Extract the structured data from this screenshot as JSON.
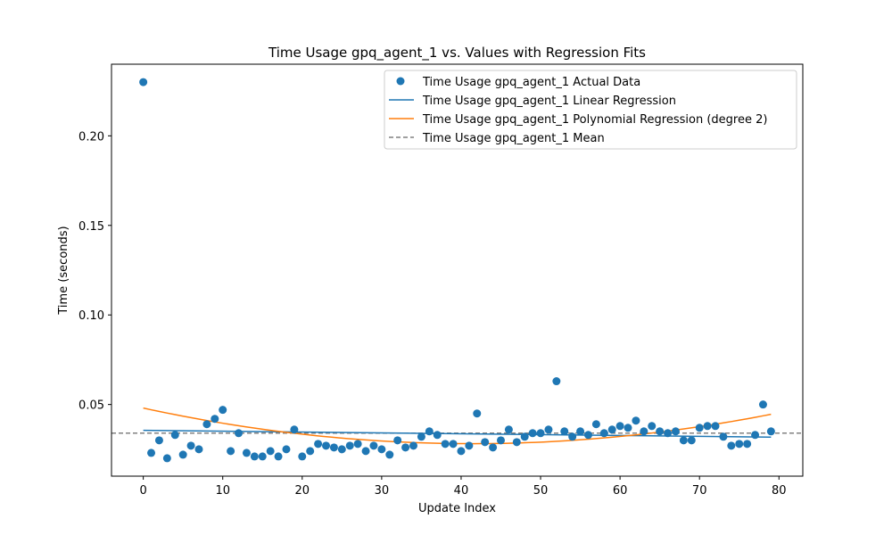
{
  "chart_data": {
    "type": "scatter",
    "title": "Time Usage gpq_agent_1 vs. Values with Regression Fits",
    "xlabel": "Update Index",
    "ylabel": "Time (seconds)",
    "xlim": [
      -4,
      83
    ],
    "ylim": [
      0.01,
      0.24
    ],
    "xticks": [
      0,
      10,
      20,
      30,
      40,
      50,
      60,
      70,
      80
    ],
    "xtick_labels": [
      "0",
      "10",
      "20",
      "30",
      "40",
      "50",
      "60",
      "70",
      "80"
    ],
    "yticks": [
      0.05,
      0.1,
      0.15,
      0.2
    ],
    "ytick_labels": [
      "0.05",
      "0.10",
      "0.15",
      "0.20"
    ],
    "grid": false,
    "legend_position": "top-right",
    "colors": {
      "actual": "#1f77b4",
      "linear": "#1f77b4",
      "poly": "#ff7f0e",
      "mean": "#808080"
    },
    "series": [
      {
        "name": "Time Usage gpq_agent_1 Actual Data",
        "kind": "scatter",
        "x": [
          0,
          1,
          2,
          3,
          4,
          5,
          6,
          7,
          8,
          9,
          10,
          11,
          12,
          13,
          14,
          15,
          16,
          17,
          18,
          19,
          20,
          21,
          22,
          23,
          24,
          25,
          26,
          27,
          28,
          29,
          30,
          31,
          32,
          33,
          34,
          35,
          36,
          37,
          38,
          39,
          40,
          41,
          42,
          43,
          44,
          45,
          46,
          47,
          48,
          49,
          50,
          51,
          52,
          53,
          54,
          55,
          56,
          57,
          58,
          59,
          60,
          61,
          62,
          63,
          64,
          65,
          66,
          67,
          68,
          69,
          70,
          71,
          72,
          73,
          74,
          75,
          76,
          77,
          78,
          79
        ],
        "y": [
          0.23,
          0.023,
          0.03,
          0.02,
          0.033,
          0.022,
          0.027,
          0.025,
          0.039,
          0.042,
          0.047,
          0.024,
          0.034,
          0.023,
          0.021,
          0.021,
          0.024,
          0.021,
          0.025,
          0.036,
          0.021,
          0.024,
          0.028,
          0.027,
          0.026,
          0.025,
          0.027,
          0.028,
          0.024,
          0.027,
          0.025,
          0.022,
          0.03,
          0.026,
          0.027,
          0.032,
          0.035,
          0.033,
          0.028,
          0.028,
          0.024,
          0.027,
          0.045,
          0.029,
          0.026,
          0.03,
          0.036,
          0.029,
          0.032,
          0.034,
          0.034,
          0.036,
          0.063,
          0.035,
          0.032,
          0.035,
          0.033,
          0.039,
          0.034,
          0.036,
          0.038,
          0.037,
          0.041,
          0.035,
          0.038,
          0.035,
          0.034,
          0.035,
          0.03,
          0.03,
          0.037,
          0.038,
          0.038,
          0.032,
          0.027,
          0.028,
          0.028,
          0.033,
          0.05,
          0.035
        ]
      },
      {
        "name": "Time Usage gpq_agent_1 Linear Regression",
        "kind": "line",
        "x": [
          0,
          79
        ],
        "y": [
          0.0356,
          0.0318
        ]
      },
      {
        "name": "Time Usage gpq_agent_1 Polynomial Regression (degree 2)",
        "kind": "poly2",
        "x_range": [
          0,
          79
        ],
        "coefficients": [
          0.048,
          -0.00096,
          1.16e-05
        ]
      },
      {
        "name": "Time Usage gpq_agent_1 Mean",
        "kind": "hline",
        "y": 0.034
      }
    ]
  }
}
